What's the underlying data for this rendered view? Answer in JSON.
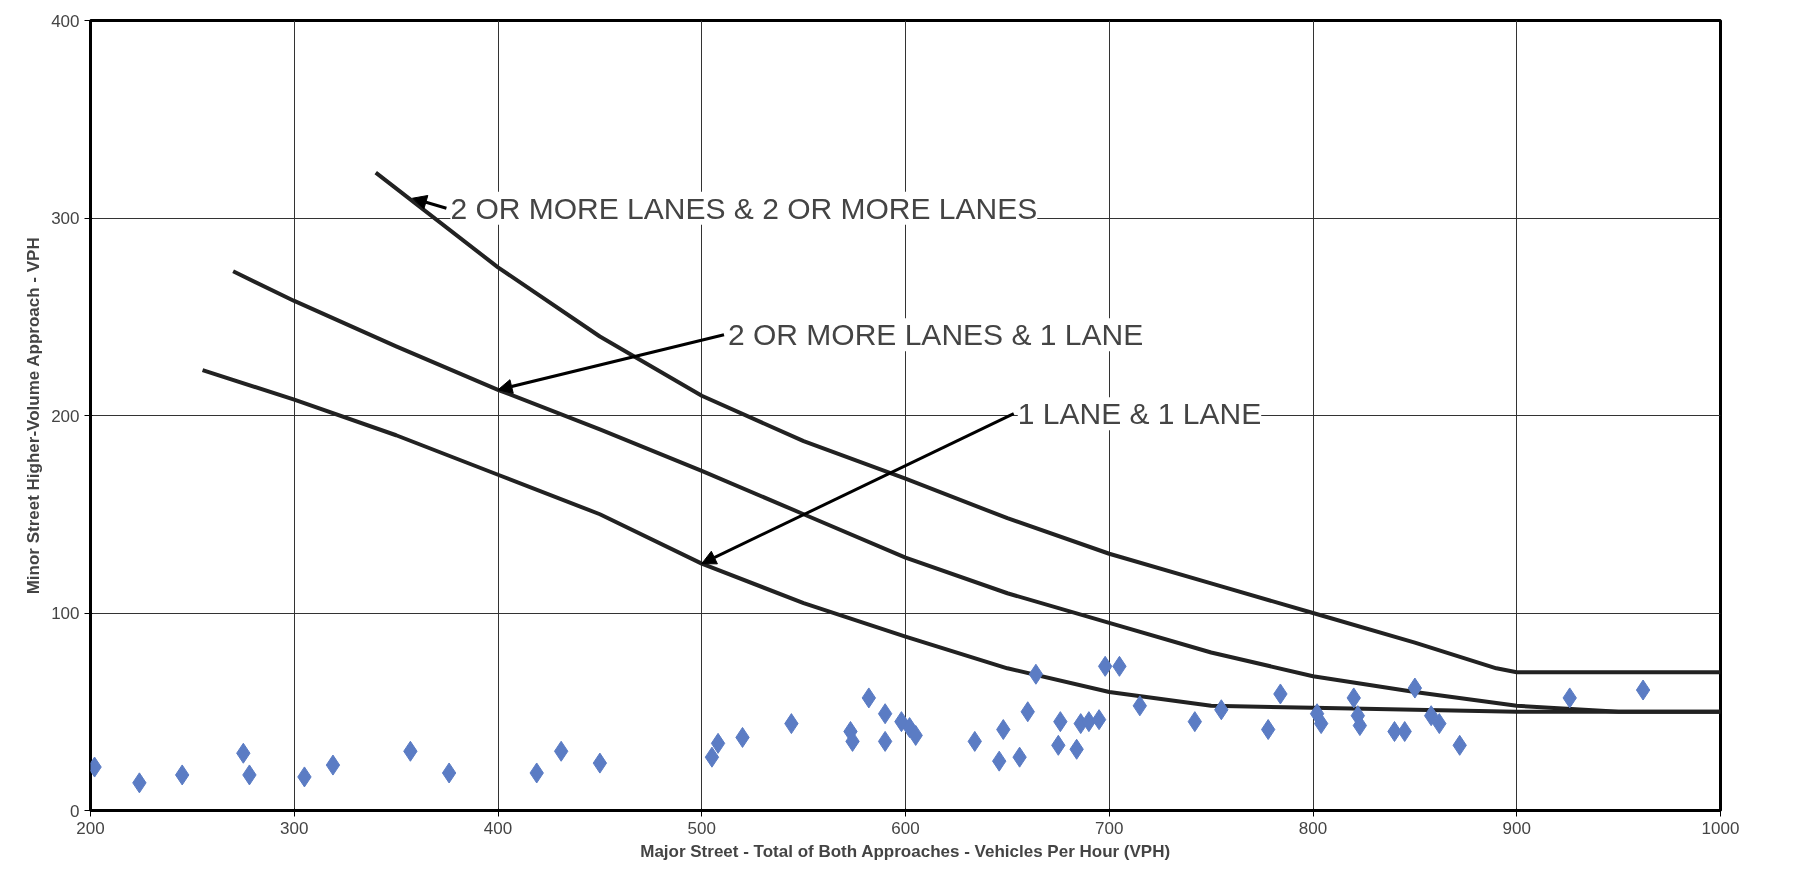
{
  "chart_data": {
    "type": "scatter",
    "xlabel": "Major Street - Total of Both Approaches - Vehicles Per Hour (VPH)",
    "ylabel": "Minor Street Higher-Volume Approach - VPH",
    "xlim": [
      200,
      1000
    ],
    "ylim": [
      0,
      400
    ],
    "xticks": [
      200,
      300,
      400,
      500,
      600,
      700,
      800,
      900,
      1000
    ],
    "yticks": [
      0,
      100,
      200,
      300,
      400
    ],
    "grid": true,
    "series": [
      {
        "type": "line",
        "color": "#222222",
        "marker": "none",
        "line_style": "solid",
        "x": [
          340,
          400,
          450,
          500,
          550,
          600,
          650,
          700,
          750,
          800,
          850,
          890,
          900,
          1000
        ],
        "values": [
          323,
          275,
          240,
          210,
          187,
          168,
          148,
          130,
          115,
          100,
          85,
          72,
          70,
          70
        ]
      },
      {
        "type": "line",
        "color": "#222222",
        "marker": "none",
        "line_style": "solid",
        "x": [
          270,
          300,
          350,
          400,
          450,
          500,
          550,
          600,
          650,
          700,
          750,
          800,
          850,
          900,
          950,
          1000
        ],
        "values": [
          273,
          258,
          235,
          213,
          193,
          172,
          150,
          128,
          110,
          95,
          80,
          68,
          60,
          53,
          50,
          50
        ]
      },
      {
        "type": "line",
        "color": "#222222",
        "marker": "none",
        "line_style": "solid",
        "x": [
          255,
          300,
          350,
          400,
          450,
          500,
          550,
          600,
          650,
          700,
          750,
          800,
          900,
          1000
        ],
        "values": [
          223,
          208,
          190,
          170,
          150,
          125,
          105,
          88,
          72,
          60,
          53,
          52,
          50,
          50
        ]
      },
      {
        "color": "#5b7cc4",
        "marker": "diamond",
        "x": [
          202,
          224,
          245,
          275,
          278,
          305,
          319,
          357,
          376,
          419,
          431,
          450,
          505,
          508,
          520,
          544,
          573,
          574,
          582,
          590,
          590,
          598,
          602,
          605,
          634,
          646,
          648,
          656,
          660,
          664,
          675,
          676,
          684,
          686,
          690,
          695,
          698,
          705,
          715,
          742,
          755,
          778,
          784,
          802,
          804,
          820,
          822,
          823,
          840,
          845,
          850,
          858,
          862,
          872,
          926,
          962
        ],
        "values": [
          22,
          14,
          18,
          29,
          18,
          17,
          23,
          30,
          19,
          19,
          30,
          24,
          27,
          34,
          37,
          44,
          40,
          35,
          57,
          49,
          35,
          45,
          42,
          38,
          35,
          25,
          41,
          27,
          50,
          69,
          33,
          45,
          31,
          44,
          45,
          46,
          73,
          73,
          53,
          45,
          51,
          41,
          59,
          49,
          44,
          57,
          48,
          43,
          40,
          40,
          62,
          48,
          44,
          33,
          57,
          61
        ]
      }
    ],
    "annotations": [
      {
        "text": "2 OR MORE LANES & 2 OR MORE LANES",
        "x": 358,
        "y": 310
      },
      {
        "text": "2 OR MORE LANES & 1 LANE",
        "x": 400,
        "y": 213
      },
      {
        "text": "1 LANE & 1 LANE",
        "x": 500,
        "y": 125
      }
    ]
  }
}
